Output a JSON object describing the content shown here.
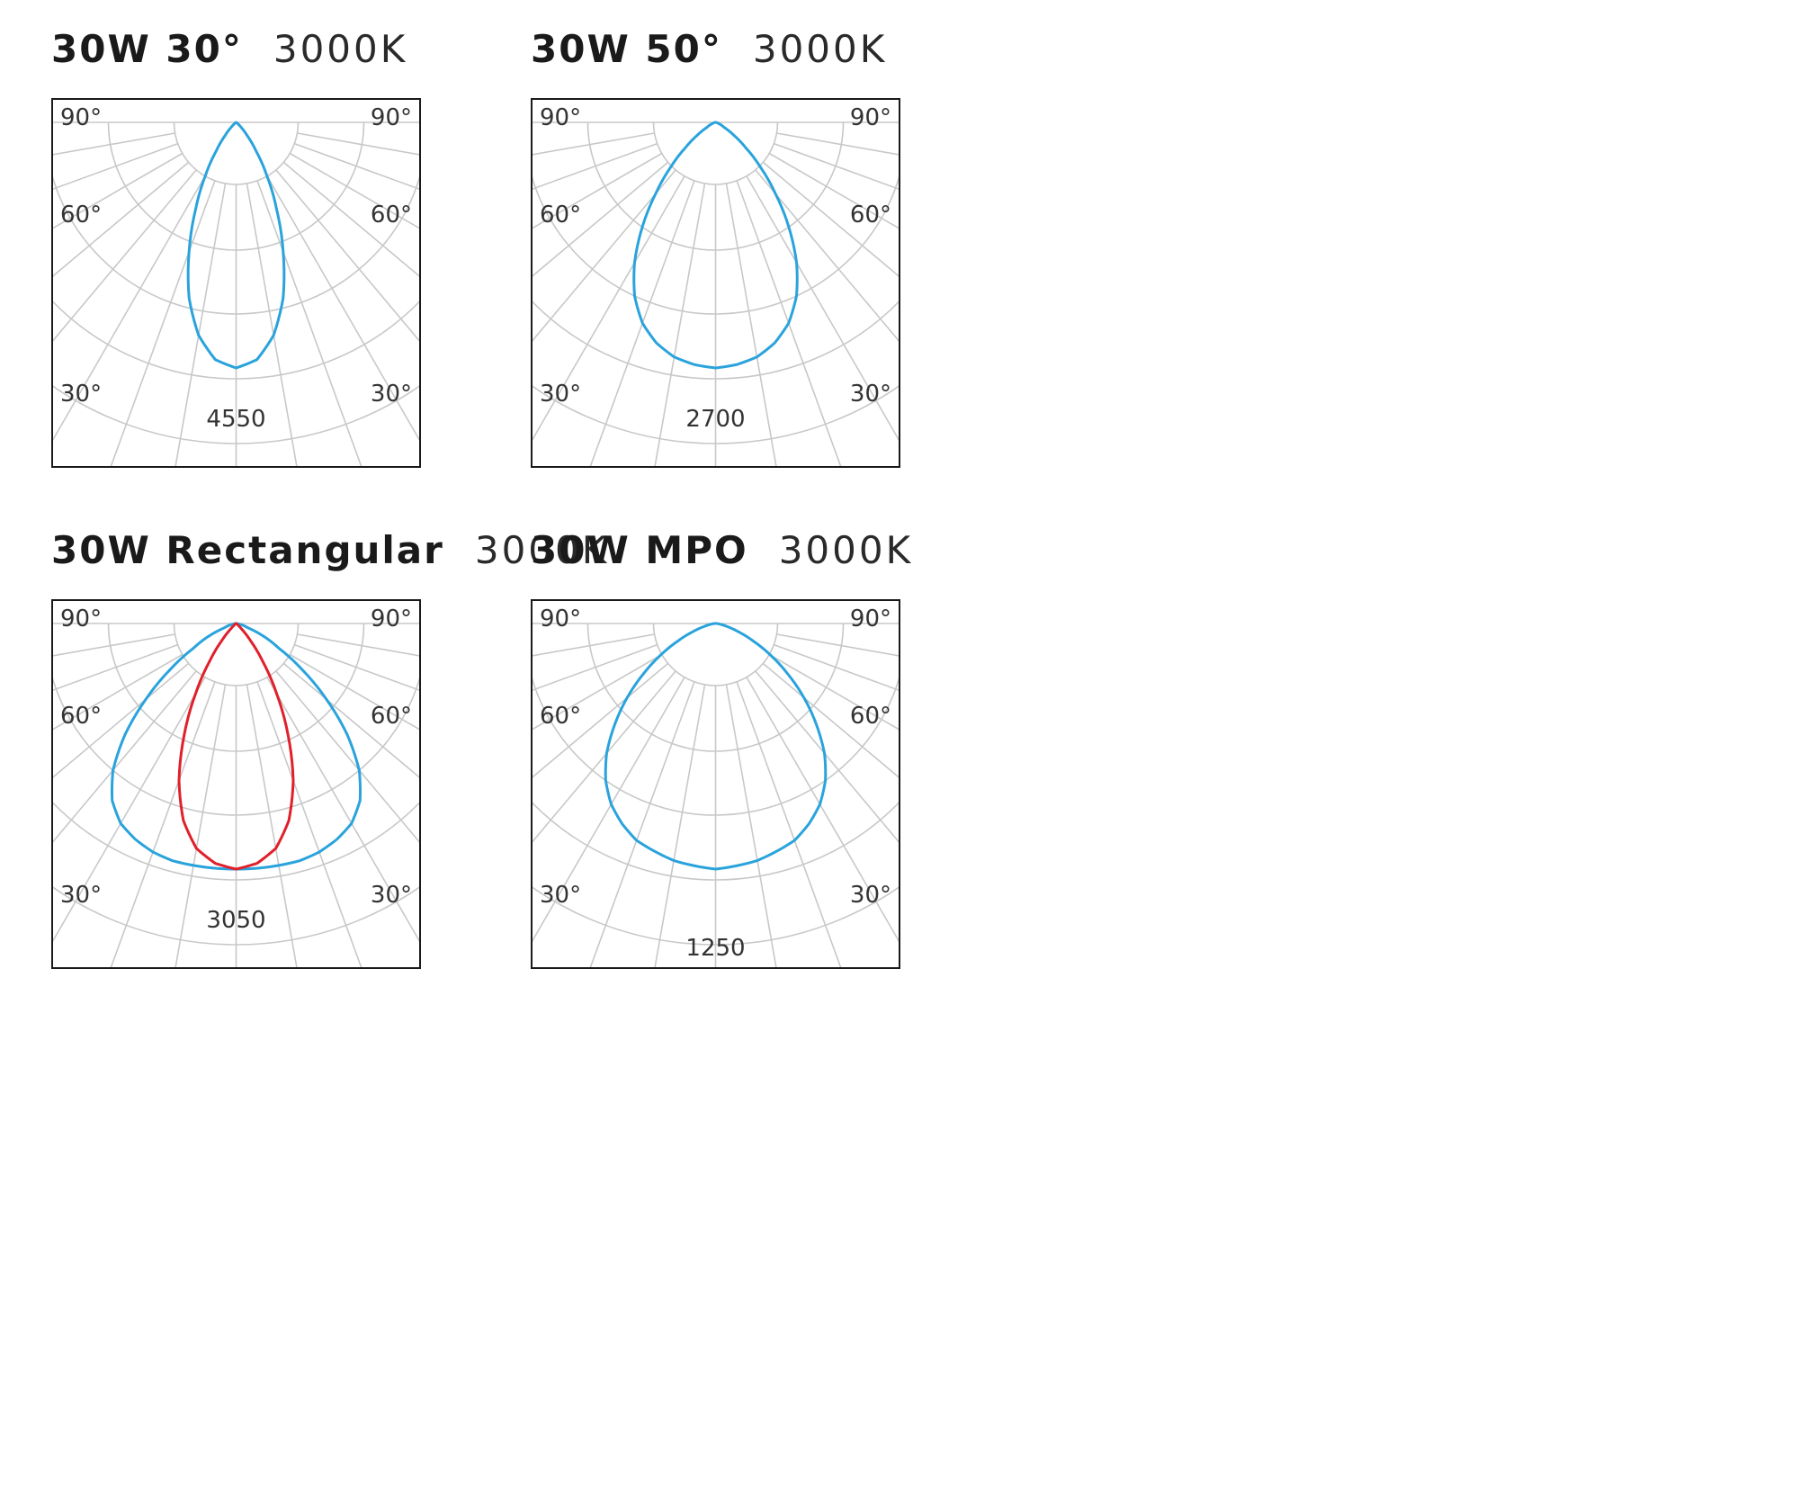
{
  "colors": {
    "grid": "#c8c8c8",
    "frame": "#1a1a1a",
    "label": "#333333"
  },
  "chart_data": [
    {
      "type": "polar",
      "heading": {
        "main": "30W 30°",
        "cct": "3000K"
      },
      "angle_labels": {
        "a90": "90°",
        "a60": "60°",
        "a30": "30°"
      },
      "scale_label": "4550",
      "series": [
        {
          "color": "#2aa3dc",
          "profile": [
            [
              0,
              1.0
            ],
            [
              5,
              0.97
            ],
            [
              10,
              0.88
            ],
            [
              15,
              0.74
            ],
            [
              20,
              0.56
            ],
            [
              25,
              0.39
            ],
            [
              30,
              0.25
            ],
            [
              35,
              0.14
            ],
            [
              40,
              0.07
            ],
            [
              45,
              0.03
            ],
            [
              50,
              0.01
            ],
            [
              60,
              0.0
            ],
            [
              90,
              0.0
            ]
          ]
        }
      ]
    },
    {
      "type": "polar",
      "heading": {
        "main": "30W 50°",
        "cct": "3000K"
      },
      "angle_labels": {
        "a90": "90°",
        "a60": "60°",
        "a30": "30°"
      },
      "scale_label": "2700",
      "series": [
        {
          "color": "#2aa3dc",
          "profile": [
            [
              0,
              1.0
            ],
            [
              5,
              0.99
            ],
            [
              10,
              0.97
            ],
            [
              15,
              0.93
            ],
            [
              20,
              0.87
            ],
            [
              25,
              0.78
            ],
            [
              30,
              0.66
            ],
            [
              35,
              0.52
            ],
            [
              40,
              0.38
            ],
            [
              45,
              0.26
            ],
            [
              50,
              0.16
            ],
            [
              55,
              0.09
            ],
            [
              60,
              0.04
            ],
            [
              70,
              0.01
            ],
            [
              90,
              0.0
            ]
          ]
        }
      ]
    },
    {
      "type": "polar",
      "heading": {
        "main": "30W Rectangular",
        "cct": "3000K"
      },
      "angle_labels": {
        "a90": "90°",
        "a60": "60°",
        "a30": "30°"
      },
      "scale_label": "3050",
      "series": [
        {
          "color": "#2aa3dc",
          "profile": [
            [
              0,
              1.0
            ],
            [
              5,
              1.0
            ],
            [
              10,
              1.0
            ],
            [
              15,
              1.0
            ],
            [
              20,
              0.99
            ],
            [
              25,
              0.97
            ],
            [
              30,
              0.94
            ],
            [
              35,
              0.88
            ],
            [
              40,
              0.78
            ],
            [
              45,
              0.64
            ],
            [
              50,
              0.48
            ],
            [
              55,
              0.33
            ],
            [
              60,
              0.2
            ],
            [
              70,
              0.05
            ],
            [
              80,
              0.01
            ],
            [
              90,
              0.0
            ]
          ]
        },
        {
          "color": "#e0202a",
          "profile": [
            [
              0,
              1.0
            ],
            [
              5,
              0.98
            ],
            [
              10,
              0.93
            ],
            [
              15,
              0.83
            ],
            [
              20,
              0.68
            ],
            [
              25,
              0.5
            ],
            [
              30,
              0.33
            ],
            [
              35,
              0.19
            ],
            [
              40,
              0.09
            ],
            [
              45,
              0.03
            ],
            [
              50,
              0.01
            ],
            [
              60,
              0.0
            ],
            [
              90,
              0.0
            ]
          ]
        }
      ]
    },
    {
      "type": "polar",
      "heading": {
        "main": "30W MPO",
        "cct": "3000K"
      },
      "angle_labels": {
        "a90": "90°",
        "a60": "60°",
        "a30": "30°"
      },
      "scale_label": "1250",
      "series": [
        {
          "color": "#2aa3dc",
          "profile": [
            [
              0,
              1.0
            ],
            [
              5,
              0.99
            ],
            [
              10,
              0.98
            ],
            [
              15,
              0.96
            ],
            [
              20,
              0.94
            ],
            [
              25,
              0.9
            ],
            [
              30,
              0.85
            ],
            [
              35,
              0.78
            ],
            [
              40,
              0.69
            ],
            [
              45,
              0.58
            ],
            [
              50,
              0.47
            ],
            [
              55,
              0.36
            ],
            [
              60,
              0.26
            ],
            [
              65,
              0.17
            ],
            [
              70,
              0.1
            ],
            [
              75,
              0.05
            ],
            [
              80,
              0.02
            ],
            [
              90,
              0.0
            ]
          ]
        }
      ]
    }
  ]
}
